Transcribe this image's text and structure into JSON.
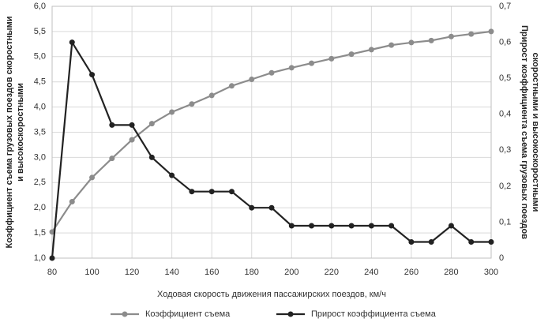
{
  "chart_data": {
    "type": "line",
    "x_label": "Ходовая скорость движения пассажирских поездов, км/ч",
    "y_label": [
      "Коэффициент съема грузовых поездов скоростными",
      "и высокоскоростными"
    ],
    "y2_label": [
      "Прирост коэффициента съема грузовых поездов",
      "скоростными и высокоскоростными"
    ],
    "x": [
      80,
      90,
      100,
      110,
      120,
      130,
      140,
      150,
      160,
      170,
      180,
      190,
      200,
      210,
      220,
      230,
      240,
      250,
      260,
      270,
      280,
      290,
      300
    ],
    "series": [
      {
        "name": "Коэффициент съема",
        "color": "#8c8c8c",
        "values": [
          1.52,
          2.12,
          2.6,
          2.98,
          3.35,
          3.67,
          3.9,
          4.06,
          4.23,
          4.42,
          4.55,
          4.68,
          4.78,
          4.87,
          4.96,
          5.05,
          5.14,
          5.23,
          5.28,
          5.32,
          5.4,
          5.45,
          5.5
        ]
      },
      {
        "name": "Прирост коэффициента съема",
        "color": "#222222",
        "axis": "y2",
        "values": [
          0,
          0.6,
          0.51,
          0.37,
          0.37,
          0.28,
          0.23,
          0.185,
          0.185,
          0.185,
          0.14,
          0.14,
          0.09,
          0.09,
          0.09,
          0.09,
          0.09,
          0.09,
          0.045,
          0.045,
          0.09,
          0.045,
          0.045
        ]
      }
    ],
    "xlim": [
      80,
      300
    ],
    "xticks": [
      80,
      100,
      120,
      140,
      160,
      180,
      200,
      220,
      240,
      260,
      280,
      300
    ],
    "ylim": [
      1,
      6
    ],
    "yticks": [
      {
        "value": 1,
        "label": "1,0"
      },
      {
        "value": 1.5,
        "label": "1,5"
      },
      {
        "value": 2,
        "label": "2,0"
      },
      {
        "value": 2.5,
        "label": "2,5"
      },
      {
        "value": 3,
        "label": "3,0"
      },
      {
        "value": 3.5,
        "label": "3,5"
      },
      {
        "value": 4,
        "label": "4,0"
      },
      {
        "value": 4.5,
        "label": "4,5"
      },
      {
        "value": 5,
        "label": "5,0"
      },
      {
        "value": 5.5,
        "label": "5,5"
      },
      {
        "value": 6,
        "label": "6,0"
      }
    ],
    "y2lim": [
      0,
      0.7
    ],
    "y2ticks": [
      0,
      {
        "value": 0.1,
        "label": "0,1"
      },
      {
        "value": 0.2,
        "label": "0,2"
      },
      {
        "value": 0.3,
        "label": "0,3"
      },
      {
        "value": 0.4,
        "label": "0,4"
      },
      {
        "value": 0.5,
        "label": "0,5"
      },
      {
        "value": 0.6,
        "label": "0,6"
      },
      {
        "value": 0.7,
        "label": "0,7"
      }
    ],
    "grid": true,
    "legend": "bottom"
  }
}
